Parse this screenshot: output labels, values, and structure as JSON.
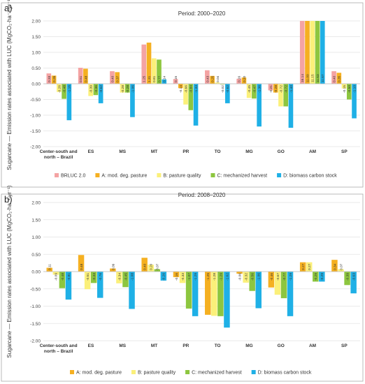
{
  "chart_data": [
    {
      "type": "bar",
      "panel": "a)",
      "title": "Period: 2000–2020",
      "ylabel": "Sugarcane — Emission rates associated with LUC (MgCO₂·ha⁻¹·yr⁻¹)",
      "categories": [
        "Center-south and north – Brazil",
        "ES",
        "MS",
        "MT",
        "PR",
        "TO",
        "MG",
        "GO",
        "AM",
        "SP"
      ],
      "ylim": [
        -2,
        2
      ],
      "yticks": [
        {
          "value": -2,
          "label": "-2.00"
        },
        {
          "value": -1.5,
          "label": "-1.50"
        },
        {
          "value": -1,
          "label": "-1.00"
        },
        {
          "value": -0.5,
          "label": "-0.50"
        },
        {
          "value": 0,
          "label": "0.00"
        },
        {
          "value": 0.5,
          "label": "0.50"
        },
        {
          "value": 1,
          "label": "1.00"
        },
        {
          "value": 1.5,
          "label": "1.50"
        },
        {
          "value": 2,
          "label": "2.00"
        }
      ],
      "series": [
        {
          "name": "BRLUC 2.0",
          "color": "#f4a3a3",
          "values": [
            0.33,
            0.51,
            0.4,
            1.25,
            0.15,
            0.43,
            0.16,
            -0.21,
            16.14,
            0.4
          ],
          "value_labels": [
            "0.33",
            "0.51",
            "0.40",
            "1.25",
            "0.15",
            "0.43",
            "0.16",
            "-0.21",
            "16.14",
            "0.40"
          ]
        },
        {
          "name": "A: mod. deg. pasture",
          "color": "#f5b021",
          "values": [
            0.26,
            0.48,
            0.37,
            1.31,
            -0.14,
            0.25,
            0.2,
            -0.28,
            11.0,
            0.35
          ],
          "value_labels": [
            "0.26",
            "0.48",
            "0.37",
            "1.31",
            "-0.14",
            "0.25",
            "0.20",
            "-0.28",
            "11.00",
            "0.35"
          ]
        },
        {
          "name": "B: pasture quality",
          "color": "#fbf07a",
          "values": [
            -0.26,
            -0.39,
            -0.28,
            0.81,
            -0.66,
            0.04,
            -0.45,
            -0.72,
            11.15,
            -0.15
          ],
          "value_labels": [
            "-0.26",
            "-0.39",
            "-0.28",
            "0.81",
            "-0.66",
            "0.04",
            "-0.45",
            "-0.72",
            "11.15",
            "-0.15"
          ]
        },
        {
          "name": "C: mechanized harvest",
          "color": "#8dc63f",
          "values": [
            -0.48,
            -0.36,
            -0.28,
            0.77,
            -0.84,
            -0.02,
            -0.47,
            -0.72,
            11.53,
            -0.5
          ],
          "value_labels": [
            "-0.48",
            "-0.36",
            "-0.28",
            "0.77",
            "-0.84",
            "-0.02",
            "-0.47",
            "-0.72",
            "11.53",
            "-0.50"
          ]
        },
        {
          "name": "D: biomass carbon stock",
          "color": "#1fb0e6",
          "values": [
            -1.16,
            -0.62,
            -1.06,
            0.14,
            -1.33,
            -0.62,
            -1.36,
            -1.4,
            11.67,
            -1.1
          ],
          "value_labels": [
            "-1.16",
            "-0.62",
            "-1.06",
            "0.14",
            "-1.33",
            "-0.62",
            "-1.36",
            "-1.40",
            "11.67",
            "-1.10"
          ]
        }
      ]
    },
    {
      "type": "bar",
      "panel": "b)",
      "title": "Period: 2008–2020",
      "ylabel": "Sugarcane — Emission rates associated with LUC (MgCO₂·ha⁻¹·yr⁻¹)",
      "categories": [
        "Center-south and north – Brazil",
        "ES",
        "MS",
        "MT",
        "PR",
        "TO",
        "MG",
        "GO",
        "AM",
        "SP"
      ],
      "ylim": [
        -2,
        2
      ],
      "yticks": [
        {
          "value": -2,
          "label": "-2.00"
        },
        {
          "value": -1.5,
          "label": "-1.50"
        },
        {
          "value": -1,
          "label": "-1.00"
        },
        {
          "value": -0.5,
          "label": "-0.50"
        },
        {
          "value": 0,
          "label": "0.00"
        },
        {
          "value": 0.5,
          "label": "0.50"
        },
        {
          "value": 1,
          "label": "1.00"
        },
        {
          "value": 1.5,
          "label": "1.50"
        },
        {
          "value": 2,
          "label": "2.00"
        }
      ],
      "series": [
        {
          "name": "A: mod. deg. pasture",
          "color": "#f5b021",
          "values": [
            0.11,
            0.48,
            0.09,
            0.4,
            -0.16,
            -1.25,
            -0.06,
            -0.46,
            0.27,
            0.34
          ],
          "value_labels": [
            "0.11",
            "0.48",
            "0.09",
            "0.40",
            "-0.16",
            "-1.25",
            "-0.06",
            "-0.46",
            "0.27",
            "0.34"
          ]
        },
        {
          "name": "B: pasture quality",
          "color": "#fbf07a",
          "values": [
            -0.09,
            -0.51,
            -0.34,
            0.2,
            -0.33,
            -1.28,
            -0.32,
            -0.67,
            0.27,
            0.07
          ],
          "value_labels": [
            "-0.09",
            "-0.51",
            "-0.34",
            "0.20",
            "-0.33",
            "-1.28",
            "-0.32",
            "-0.67",
            "0.27",
            "0.07"
          ]
        },
        {
          "name": "C: mechanized harvest",
          "color": "#8dc63f",
          "values": [
            -0.48,
            -0.33,
            -0.45,
            0.07,
            -1.07,
            -1.29,
            -0.56,
            -0.77,
            -0.29,
            -0.39
          ],
          "value_labels": [
            "-0.48",
            "-0.33",
            "-0.45",
            "0.07",
            "-1.07",
            "-1.29",
            "-0.56",
            "-0.77",
            "-0.29",
            "-0.39"
          ]
        },
        {
          "name": "D: biomass carbon stock",
          "color": "#1fb0e6",
          "values": [
            -0.81,
            -0.76,
            -1.08,
            -0.26,
            -1.29,
            -1.62,
            -1.06,
            -1.29,
            -0.29,
            -0.63
          ],
          "value_labels": [
            "-0.81",
            "-0.76",
            "-1.08",
            "-0.26",
            "-1.29",
            "-1.62",
            "-1.06",
            "-1.29",
            "-0.29",
            "-0.63"
          ]
        }
      ]
    }
  ]
}
